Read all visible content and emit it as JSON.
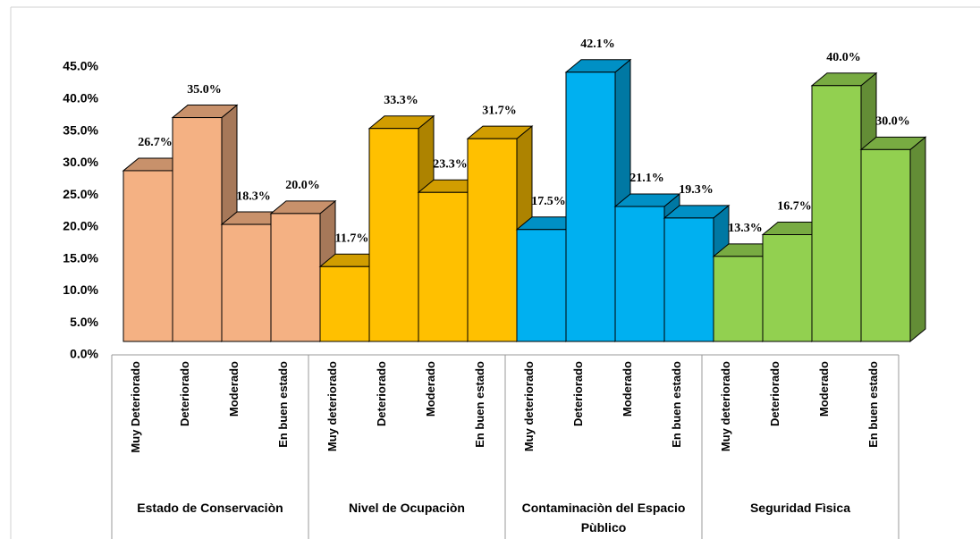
{
  "chart_data": {
    "type": "bar",
    "ylim": [
      0,
      45
    ],
    "yticks": [
      {
        "value": 0,
        "label": "0.0%"
      },
      {
        "value": 5,
        "label": "5.0%"
      },
      {
        "value": 10,
        "label": "10.0%"
      },
      {
        "value": 15,
        "label": "15.0%"
      },
      {
        "value": 20,
        "label": "20.0%"
      },
      {
        "value": 25,
        "label": "25.0%"
      },
      {
        "value": 30,
        "label": "30.0%"
      },
      {
        "value": 35,
        "label": "35.0%"
      },
      {
        "value": 40,
        "label": "40.0%"
      },
      {
        "value": 45,
        "label": "45.0%"
      }
    ],
    "groups": [
      {
        "name": "Estado de Conservaciòn",
        "color": "#f4b183",
        "categories": [
          "Muy Deteriorado",
          "Deteriorado",
          "Moderado",
          "En buen estado"
        ],
        "values": [
          26.7,
          35.0,
          18.3,
          20.0
        ],
        "value_labels": [
          "26.7%",
          "35.0%",
          "18.3%",
          "20.0%"
        ]
      },
      {
        "name": "Nivel de Ocupaciòn",
        "color": "#ffc000",
        "categories": [
          "Muy deteriorado",
          "Deteriorado",
          "Moderado",
          "En buen estado"
        ],
        "values": [
          11.7,
          33.3,
          23.3,
          31.7
        ],
        "value_labels": [
          "11.7%",
          "33.3%",
          "23.3%",
          "31.7%"
        ]
      },
      {
        "name": "Contaminaciòn del Espacio Pùblico",
        "color": "#00b0f0",
        "categories": [
          "Muy deteriorado",
          "Deteriorado",
          "Moderado",
          "En buen estado"
        ],
        "values": [
          17.5,
          42.1,
          21.1,
          19.3
        ],
        "value_labels": [
          "17.5%",
          "42.1%",
          "21.1%",
          "19.3%"
        ]
      },
      {
        "name": "Seguridad Fìsica",
        "color": "#92d050",
        "categories": [
          "Muy deteriorado",
          "Deteriorado",
          "Moderado",
          "En buen estado"
        ],
        "values": [
          13.3,
          16.7,
          40.0,
          30.0
        ],
        "value_labels": [
          "13.3%",
          "16.7%",
          "40.0%",
          "30.0%"
        ]
      }
    ]
  }
}
